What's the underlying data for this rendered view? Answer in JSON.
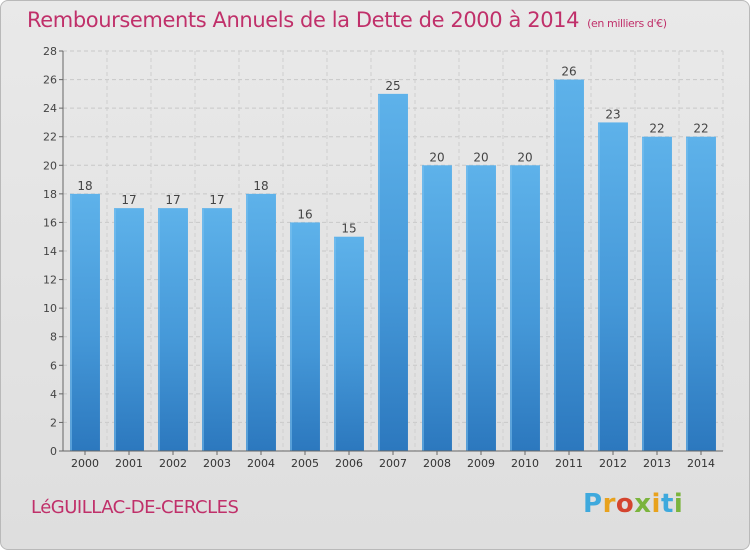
{
  "header": {
    "title": "Remboursements Annuels de la Dette de 2000 à 2014",
    "unit": "(en milliers d'€)"
  },
  "footer": {
    "commune": "LéGUILLAC-DE-CERCLES",
    "logo_letters": [
      "P",
      "r",
      "o",
      "x",
      "i",
      "t",
      "i"
    ],
    "logo_colors": [
      "#3ea9dd",
      "#e8a21d",
      "#d4442e",
      "#7bb43c",
      "#e8a21d",
      "#3ea9dd",
      "#7bb43c"
    ]
  },
  "colors": {
    "title": "#c0306a",
    "bar_light": "#5aaee8",
    "bar_dark": "#2f7fc3",
    "grid": "#c9c9c9",
    "axis": "#555555"
  },
  "chart_data": {
    "type": "bar",
    "title": "Remboursements Annuels de la Dette de 2000 à 2014",
    "subtitle": "(en milliers d'€)",
    "categories": [
      "2000",
      "2001",
      "2002",
      "2003",
      "2004",
      "2005",
      "2006",
      "2007",
      "2008",
      "2009",
      "2010",
      "2011",
      "2012",
      "2013",
      "2014"
    ],
    "values": [
      18,
      17,
      17,
      17,
      18,
      16,
      15,
      25,
      20,
      20,
      20,
      26,
      23,
      22,
      22
    ],
    "ylim": [
      0,
      28
    ],
    "yticks": [
      0,
      2,
      4,
      6,
      8,
      10,
      12,
      14,
      16,
      18,
      20,
      22,
      24,
      26,
      28
    ],
    "grid": "horizontal dashed",
    "legend": "none",
    "data_labels": true
  }
}
